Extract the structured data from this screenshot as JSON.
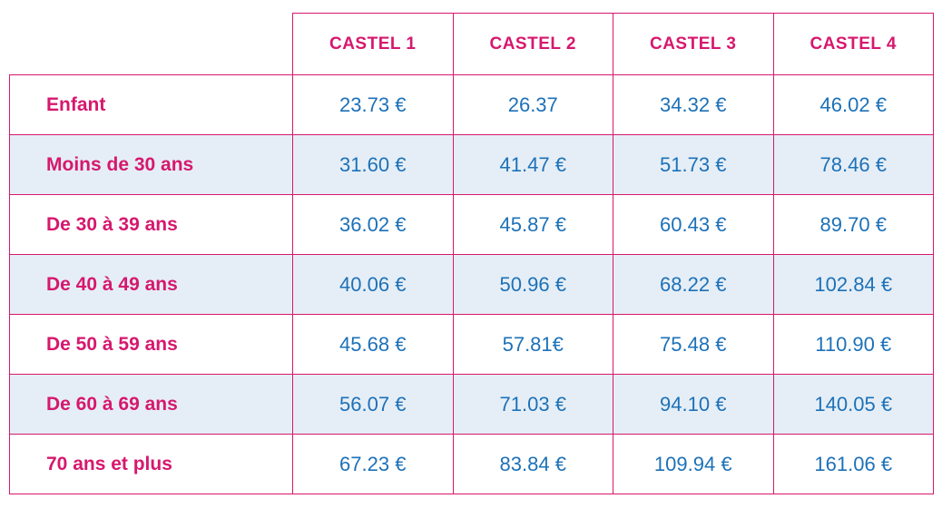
{
  "table": {
    "columns": [
      "CASTEL 1",
      "CASTEL 2",
      "CASTEL 3",
      "CASTEL 4"
    ],
    "rows": [
      {
        "label": "Enfant",
        "values": [
          "23.73 €",
          "26.37",
          "34.32 €",
          "46.02 €"
        ]
      },
      {
        "label": "Moins de 30 ans",
        "values": [
          "31.60 €",
          "41.47 €",
          "51.73 €",
          "78.46 €"
        ]
      },
      {
        "label": "De 30 à 39 ans",
        "values": [
          "36.02 €",
          "45.87 €",
          "60.43 €",
          "89.70 €"
        ]
      },
      {
        "label": "De 40 à 49 ans",
        "values": [
          "40.06 €",
          "50.96 €",
          "68.22 €",
          "102.84 €"
        ]
      },
      {
        "label": "De 50 à 59 ans",
        "values": [
          "45.68 €",
          "57.81€",
          "75.48 €",
          "110.90 €"
        ]
      },
      {
        "label": "De 60 à 69 ans",
        "values": [
          "56.07 €",
          "71.03 €",
          "94.10 €",
          "140.05 €"
        ]
      },
      {
        "label": "70 ans et plus",
        "values": [
          "67.23 €",
          "83.84 €",
          "109.94 €",
          "161.06 €"
        ]
      }
    ],
    "colors": {
      "accent_pink": "#d6186e",
      "value_blue": "#1d71b8",
      "row_alt_bg": "#e5eef6"
    }
  },
  "chart_data": {
    "type": "table",
    "title": "",
    "columns": [
      "CASTEL 1",
      "CASTEL 2",
      "CASTEL 3",
      "CASTEL 4"
    ],
    "row_labels": [
      "Enfant",
      "Moins de 30 ans",
      "De 30 à 39 ans",
      "De 40 à 49 ans",
      "De 50 à 59 ans",
      "De 60 à 69 ans",
      "70 ans et plus"
    ],
    "values_eur": [
      [
        23.73,
        26.37,
        34.32,
        46.02
      ],
      [
        31.6,
        41.47,
        51.73,
        78.46
      ],
      [
        36.02,
        45.87,
        60.43,
        89.7
      ],
      [
        40.06,
        50.96,
        68.22,
        102.84
      ],
      [
        45.68,
        57.81,
        75.48,
        110.9
      ],
      [
        56.07,
        71.03,
        94.1,
        140.05
      ],
      [
        67.23,
        83.84,
        109.94,
        161.06
      ]
    ]
  }
}
